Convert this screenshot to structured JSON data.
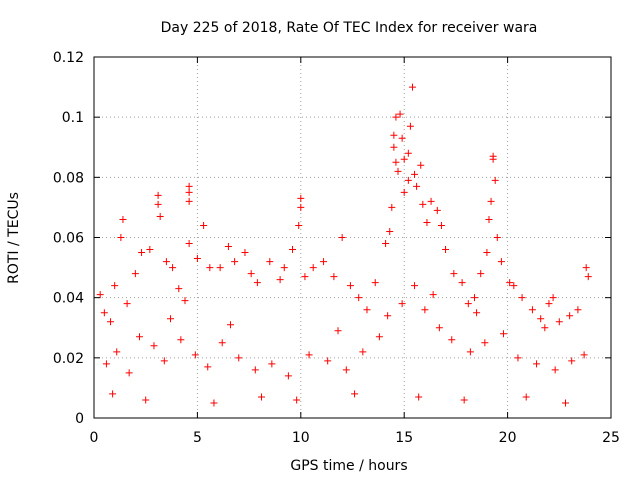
{
  "chart_data": {
    "type": "scatter",
    "title": "Day 225 of 2018, Rate Of TEC Index for receiver wara",
    "xlabel": "GPS time / hours",
    "ylabel": "ROTI / TECUs",
    "xlim": [
      0,
      25
    ],
    "ylim": [
      0,
      0.12
    ],
    "x_ticks": [
      "0",
      "5",
      "10",
      "15",
      "20",
      "25"
    ],
    "y_ticks": [
      "0",
      "0.02",
      "0.04",
      "0.06",
      "0.08",
      "0.1",
      "0.12"
    ],
    "x_tick_values": [
      0,
      5,
      10,
      15,
      20,
      25
    ],
    "y_tick_values": [
      0,
      0.02,
      0.04,
      0.06,
      0.08,
      0.1,
      0.12
    ],
    "grid": true,
    "marker": "+",
    "marker_color": "#ff0000",
    "series": [
      {
        "name": "ROTI",
        "points": [
          [
            0.3,
            0.041
          ],
          [
            0.5,
            0.035
          ],
          [
            0.8,
            0.032
          ],
          [
            1.0,
            0.044
          ],
          [
            1.3,
            0.06
          ],
          [
            1.4,
            0.066
          ],
          [
            1.6,
            0.038
          ],
          [
            2.0,
            0.048
          ],
          [
            2.3,
            0.055
          ],
          [
            2.7,
            0.056
          ],
          [
            3.1,
            0.074
          ],
          [
            3.1,
            0.071
          ],
          [
            3.2,
            0.067
          ],
          [
            3.5,
            0.052
          ],
          [
            3.8,
            0.05
          ],
          [
            4.1,
            0.043
          ],
          [
            4.4,
            0.039
          ],
          [
            4.6,
            0.077
          ],
          [
            4.6,
            0.075
          ],
          [
            4.6,
            0.072
          ],
          [
            4.6,
            0.058
          ],
          [
            5.0,
            0.053
          ],
          [
            5.3,
            0.064
          ],
          [
            5.6,
            0.05
          ],
          [
            6.1,
            0.05
          ],
          [
            6.5,
            0.057
          ],
          [
            6.8,
            0.052
          ],
          [
            7.3,
            0.055
          ],
          [
            7.6,
            0.048
          ],
          [
            7.9,
            0.045
          ],
          [
            8.5,
            0.052
          ],
          [
            9.0,
            0.046
          ],
          [
            9.2,
            0.05
          ],
          [
            9.6,
            0.056
          ],
          [
            9.9,
            0.064
          ],
          [
            10.0,
            0.073
          ],
          [
            10.0,
            0.07
          ],
          [
            10.2,
            0.047
          ],
          [
            10.6,
            0.05
          ],
          [
            11.1,
            0.052
          ],
          [
            11.6,
            0.047
          ],
          [
            12.0,
            0.06
          ],
          [
            12.4,
            0.044
          ],
          [
            12.8,
            0.04
          ],
          [
            13.2,
            0.036
          ],
          [
            13.6,
            0.045
          ],
          [
            14.1,
            0.058
          ],
          [
            14.3,
            0.062
          ],
          [
            14.4,
            0.07
          ],
          [
            14.5,
            0.09
          ],
          [
            14.5,
            0.094
          ],
          [
            14.6,
            0.1
          ],
          [
            14.6,
            0.085
          ],
          [
            14.7,
            0.082
          ],
          [
            14.8,
            0.101
          ],
          [
            14.9,
            0.093
          ],
          [
            15.0,
            0.086
          ],
          [
            15.0,
            0.075
          ],
          [
            15.2,
            0.079
          ],
          [
            15.2,
            0.088
          ],
          [
            15.3,
            0.097
          ],
          [
            15.4,
            0.11
          ],
          [
            15.5,
            0.081
          ],
          [
            15.6,
            0.077
          ],
          [
            15.8,
            0.084
          ],
          [
            15.9,
            0.071
          ],
          [
            16.1,
            0.065
          ],
          [
            16.3,
            0.072
          ],
          [
            16.6,
            0.069
          ],
          [
            16.8,
            0.064
          ],
          [
            17.0,
            0.056
          ],
          [
            17.4,
            0.048
          ],
          [
            17.8,
            0.045
          ],
          [
            18.1,
            0.038
          ],
          [
            18.4,
            0.04
          ],
          [
            18.7,
            0.048
          ],
          [
            19.0,
            0.055
          ],
          [
            19.1,
            0.066
          ],
          [
            19.2,
            0.072
          ],
          [
            19.3,
            0.087
          ],
          [
            19.3,
            0.086
          ],
          [
            19.4,
            0.079
          ],
          [
            19.5,
            0.06
          ],
          [
            19.7,
            0.052
          ],
          [
            20.1,
            0.045
          ],
          [
            20.3,
            0.044
          ],
          [
            20.7,
            0.04
          ],
          [
            21.2,
            0.036
          ],
          [
            21.6,
            0.033
          ],
          [
            22.0,
            0.038
          ],
          [
            22.2,
            0.04
          ],
          [
            22.5,
            0.032
          ],
          [
            23.0,
            0.034
          ],
          [
            23.4,
            0.036
          ],
          [
            23.8,
            0.05
          ],
          [
            23.9,
            0.047
          ],
          [
            0.6,
            0.018
          ],
          [
            1.1,
            0.022
          ],
          [
            1.7,
            0.015
          ],
          [
            2.2,
            0.027
          ],
          [
            2.9,
            0.024
          ],
          [
            3.4,
            0.019
          ],
          [
            4.2,
            0.026
          ],
          [
            4.9,
            0.021
          ],
          [
            5.5,
            0.017
          ],
          [
            6.2,
            0.025
          ],
          [
            7.0,
            0.02
          ],
          [
            7.8,
            0.016
          ],
          [
            8.6,
            0.018
          ],
          [
            9.4,
            0.014
          ],
          [
            10.4,
            0.021
          ],
          [
            11.3,
            0.019
          ],
          [
            12.2,
            0.016
          ],
          [
            13.0,
            0.022
          ],
          [
            13.8,
            0.027
          ],
          [
            14.2,
            0.034
          ],
          [
            14.9,
            0.038
          ],
          [
            15.5,
            0.044
          ],
          [
            16.0,
            0.036
          ],
          [
            16.7,
            0.03
          ],
          [
            17.3,
            0.026
          ],
          [
            18.2,
            0.022
          ],
          [
            18.9,
            0.025
          ],
          [
            19.8,
            0.028
          ],
          [
            20.5,
            0.02
          ],
          [
            21.4,
            0.018
          ],
          [
            22.3,
            0.016
          ],
          [
            23.1,
            0.019
          ],
          [
            23.7,
            0.021
          ],
          [
            0.9,
            0.008
          ],
          [
            2.5,
            0.006
          ],
          [
            5.8,
            0.005
          ],
          [
            8.1,
            0.007
          ],
          [
            9.8,
            0.006
          ],
          [
            12.6,
            0.008
          ],
          [
            15.7,
            0.007
          ],
          [
            17.9,
            0.006
          ],
          [
            20.9,
            0.007
          ],
          [
            22.8,
            0.005
          ],
          [
            3.7,
            0.033
          ],
          [
            6.6,
            0.031
          ],
          [
            11.8,
            0.029
          ],
          [
            16.4,
            0.041
          ],
          [
            18.5,
            0.035
          ],
          [
            21.8,
            0.03
          ]
        ]
      }
    ]
  }
}
